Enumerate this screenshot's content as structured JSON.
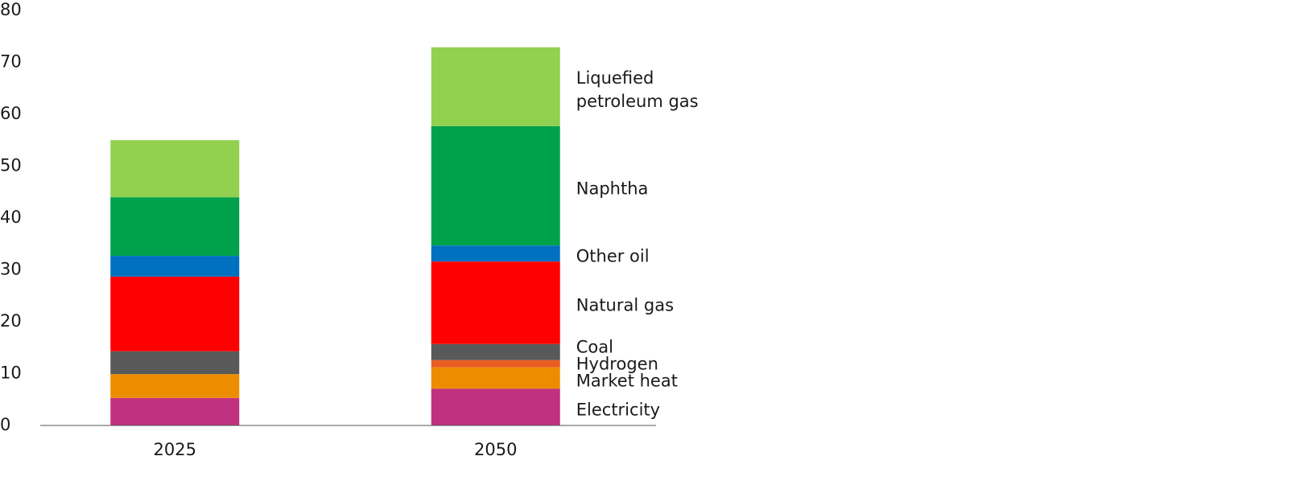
{
  "chart_data": {
    "type": "stacked_bar",
    "categories": [
      "2025",
      "2050"
    ],
    "series": [
      {
        "name": "Electricity",
        "color": "#c0317f",
        "values": [
          5.3,
          7.1
        ]
      },
      {
        "name": "Market heat",
        "color": "#ee8c00",
        "values": [
          4.6,
          4.1
        ]
      },
      {
        "name": "Hydrogen",
        "color": "#eb5c21",
        "values": [
          0,
          1.4
        ]
      },
      {
        "name": "Coal",
        "color": "#595959",
        "values": [
          4.4,
          3.1
        ]
      },
      {
        "name": "Natural gas",
        "color": "#ff0000",
        "values": [
          14.4,
          15.9
        ]
      },
      {
        "name": "Other oil",
        "color": "#0070c0",
        "values": [
          4.0,
          3.1
        ]
      },
      {
        "name": "Naphtha",
        "color": "#00a14b",
        "values": [
          11.3,
          23.0
        ]
      },
      {
        "name": "Liquefied petroleum gas",
        "color": "#92d050",
        "values": [
          11.0,
          15.2
        ]
      }
    ],
    "ylim": [
      0,
      80
    ],
    "yticks": [
      0,
      10,
      20,
      30,
      40,
      50,
      60,
      70,
      80
    ],
    "grid": false
  }
}
